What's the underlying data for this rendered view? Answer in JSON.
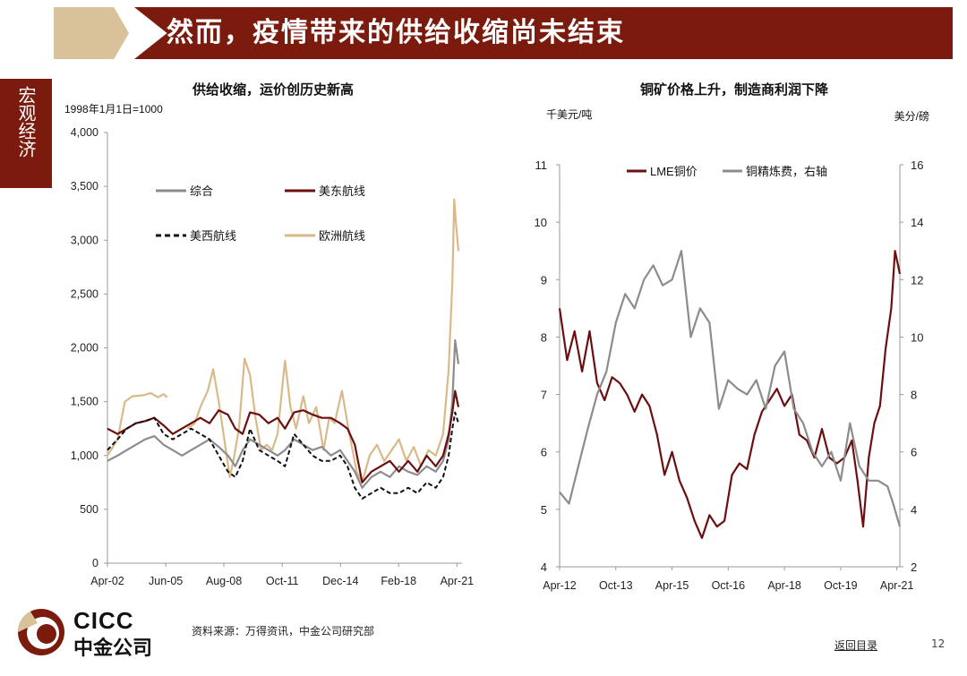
{
  "header": {
    "title": "然而，疫情带来的供给收缩尚未结束"
  },
  "side_tab": {
    "label": "宏观经济"
  },
  "footer": {
    "source": "资料来源：万得资讯，中金公司研究部",
    "back_link": "返回目录",
    "page_number": "12",
    "logo_en": "CICC",
    "logo_cn": "中金公司"
  },
  "colors": {
    "brand": "#7a1b0e",
    "tan": "#d9c29a",
    "gray": "#8c8c8c",
    "black": "#111111",
    "dark_red": "#6b0f10"
  },
  "chart_data": [
    {
      "type": "line",
      "title": "供给收缩，运价创历史新高",
      "subtitle": "1998年1月1日=1000",
      "ylim": [
        0,
        4000
      ],
      "yticks": [
        0,
        500,
        1000,
        1500,
        2000,
        2500,
        3000,
        3500,
        4000
      ],
      "ytick_labels": [
        "0",
        "500",
        "1,000",
        "1,500",
        "2,000",
        "2,500",
        "3,000",
        "3,500",
        "4,000"
      ],
      "xlim": [
        2002.25,
        2021.33
      ],
      "xticks": [
        2002.25,
        2005.42,
        2008.58,
        2011.75,
        2014.92,
        2018.08,
        2021.25
      ],
      "xtick_labels": [
        "Apr-02",
        "Jun-05",
        "Aug-08",
        "Oct-11",
        "Dec-14",
        "Feb-18",
        "Apr-21"
      ],
      "legend": [
        {
          "name": "综合",
          "color": "#8c8c8c",
          "dash": "solid"
        },
        {
          "name": "美东航线",
          "color": "#6b0f10",
          "dash": "solid"
        },
        {
          "name": "美西航线",
          "color": "#111111",
          "dash": "dashed"
        },
        {
          "name": "欧洲航线",
          "color": "#d9b98a",
          "dash": "solid"
        }
      ],
      "series": [
        {
          "name": "欧洲航线",
          "color": "#d9b98a",
          "width": 2.2,
          "dash": "solid",
          "x": [
            2002.25,
            2002.8,
            2003.2,
            2003.6,
            2004.2,
            2004.6,
            2005.0,
            2005.3,
            2005.5
          ],
          "y": [
            1000,
            1150,
            1500,
            1550,
            1560,
            1580,
            1540,
            1570,
            1540
          ]
        },
        {
          "name": "欧洲航线",
          "color": "#d9b98a",
          "width": 2.2,
          "dash": "solid",
          "x": [
            2006.6,
            2007.0,
            2007.3,
            2007.7,
            2008.0,
            2008.3,
            2008.6,
            2008.9,
            2009.1,
            2009.4,
            2009.7,
            2010.0,
            2010.3,
            2010.6,
            2010.9,
            2011.2,
            2011.5,
            2011.9,
            2012.2,
            2012.5,
            2012.9,
            2013.2,
            2013.6,
            2014.0,
            2014.3,
            2014.6,
            2015.0,
            2015.4,
            2015.8,
            2016.1,
            2016.5,
            2016.9,
            2017.3,
            2017.7,
            2018.1,
            2018.5,
            2018.9,
            2019.3,
            2019.7,
            2020.1,
            2020.5,
            2020.8,
            2021.0,
            2021.1,
            2021.2,
            2021.33
          ],
          "y": [
            1250,
            1300,
            1450,
            1600,
            1800,
            1500,
            1150,
            800,
            950,
            1250,
            1900,
            1750,
            1350,
            1050,
            1100,
            1050,
            1200,
            1880,
            1450,
            1250,
            1550,
            1300,
            1450,
            1050,
            1350,
            1300,
            1600,
            1200,
            850,
            750,
            1000,
            1100,
            950,
            1050,
            1150,
            950,
            1080,
            900,
            1050,
            1000,
            1200,
            1800,
            2600,
            3380,
            3150,
            2900
          ]
        },
        {
          "name": "综合",
          "color": "#8c8c8c",
          "width": 2.2,
          "dash": "solid",
          "x": [
            2002.25,
            2002.8,
            2003.3,
            2003.8,
            2004.3,
            2004.8,
            2005.3,
            2005.8,
            2006.3,
            2006.8,
            2007.3,
            2007.8,
            2008.3,
            2008.8,
            2009.2,
            2009.6,
            2010.0,
            2010.5,
            2011.0,
            2011.5,
            2011.9,
            2012.4,
            2012.9,
            2013.4,
            2013.9,
            2014.4,
            2014.9,
            2015.3,
            2015.7,
            2016.1,
            2016.6,
            2017.1,
            2017.6,
            2018.1,
            2018.6,
            2019.1,
            2019.6,
            2020.1,
            2020.5,
            2020.8,
            2021.0,
            2021.15,
            2021.33
          ],
          "y": [
            950,
            1000,
            1050,
            1100,
            1150,
            1180,
            1100,
            1050,
            1000,
            1050,
            1100,
            1150,
            1080,
            1000,
            900,
            1050,
            1150,
            1100,
            1050,
            1000,
            1050,
            1150,
            1100,
            1050,
            1080,
            1000,
            1050,
            950,
            850,
            700,
            800,
            850,
            800,
            900,
            850,
            820,
            900,
            850,
            950,
            1150,
            1500,
            2070,
            1850
          ]
        },
        {
          "name": "美东航线",
          "color": "#6b0f10",
          "width": 2.2,
          "dash": "solid",
          "x": [
            2002.25,
            2002.8,
            2003.3,
            2003.8,
            2004.3,
            2004.8,
            2005.3,
            2005.8,
            2006.3,
            2006.8,
            2007.3,
            2007.8,
            2008.3,
            2008.8,
            2009.2,
            2009.6,
            2010.0,
            2010.5,
            2011.0,
            2011.5,
            2011.9,
            2012.4,
            2012.9,
            2013.4,
            2013.9,
            2014.4,
            2014.9,
            2015.3,
            2015.7,
            2016.1,
            2016.6,
            2017.1,
            2017.6,
            2018.1,
            2018.6,
            2019.1,
            2019.6,
            2020.1,
            2020.5,
            2020.8,
            2021.0,
            2021.15,
            2021.33
          ],
          "y": [
            1250,
            1200,
            1250,
            1300,
            1320,
            1350,
            1280,
            1200,
            1250,
            1300,
            1350,
            1300,
            1420,
            1380,
            1250,
            1200,
            1400,
            1380,
            1300,
            1350,
            1250,
            1400,
            1420,
            1380,
            1350,
            1350,
            1300,
            1250,
            1100,
            750,
            850,
            900,
            950,
            850,
            950,
            850,
            1000,
            900,
            1000,
            1200,
            1400,
            1600,
            1450
          ]
        },
        {
          "name": "美西航线",
          "color": "#111111",
          "width": 2.0,
          "dash": "dashed",
          "x": [
            2002.25,
            2002.8,
            2003.3,
            2003.8,
            2004.3,
            2004.8,
            2005.3,
            2005.8,
            2006.3,
            2006.8,
            2007.3,
            2007.8,
            2008.3,
            2008.8,
            2009.2,
            2009.6,
            2010.0,
            2010.5,
            2011.0,
            2011.5,
            2011.9,
            2012.4,
            2012.9,
            2013.4,
            2013.9,
            2014.4,
            2014.9,
            2015.3,
            2015.7,
            2016.1,
            2016.6,
            2017.1,
            2017.6,
            2018.1,
            2018.6,
            2019.1,
            2019.6,
            2020.1,
            2020.5,
            2020.8,
            2021.0,
            2021.15,
            2021.33
          ],
          "y": [
            1050,
            1150,
            1250,
            1300,
            1320,
            1350,
            1200,
            1150,
            1200,
            1250,
            1200,
            1150,
            1000,
            850,
            800,
            950,
            1250,
            1050,
            1000,
            950,
            900,
            1200,
            1100,
            1000,
            950,
            950,
            1000,
            900,
            700,
            600,
            650,
            700,
            650,
            650,
            700,
            650,
            750,
            700,
            800,
            1000,
            1250,
            1400,
            1300
          ]
        }
      ]
    },
    {
      "type": "line",
      "title": "铜矿价格上升，制造商利润下降",
      "ylabel": "千美元/吨",
      "ylabel_right": "美分/磅",
      "ylim": [
        4,
        11
      ],
      "yticks": [
        4,
        5,
        6,
        7,
        8,
        9,
        10,
        11
      ],
      "ylim_right": [
        2,
        16
      ],
      "yticks_right": [
        2,
        4,
        6,
        8,
        10,
        12,
        14,
        16
      ],
      "xlim": [
        2012.25,
        2021.33
      ],
      "xticks": [
        2012.25,
        2013.75,
        2015.25,
        2016.75,
        2018.25,
        2019.75,
        2021.25
      ],
      "xtick_labels": [
        "Apr-12",
        "Oct-13",
        "Apr-15",
        "Oct-16",
        "Apr-18",
        "Oct-19",
        "Apr-21"
      ],
      "legend": [
        {
          "name": "LME铜价",
          "color": "#6b0f10"
        },
        {
          "name": "铜精炼费，右轴",
          "color": "#8c8c8c"
        }
      ],
      "series": [
        {
          "name": "LME铜价",
          "axis": "left",
          "color": "#6b0f10",
          "width": 2.2,
          "x": [
            2012.25,
            2012.45,
            2012.65,
            2012.85,
            2013.05,
            2013.25,
            2013.45,
            2013.65,
            2013.85,
            2014.05,
            2014.25,
            2014.45,
            2014.65,
            2014.85,
            2015.05,
            2015.25,
            2015.45,
            2015.65,
            2015.85,
            2016.05,
            2016.25,
            2016.45,
            2016.65,
            2016.85,
            2017.05,
            2017.25,
            2017.45,
            2017.65,
            2017.85,
            2018.05,
            2018.25,
            2018.45,
            2018.65,
            2018.85,
            2019.05,
            2019.25,
            2019.45,
            2019.65,
            2019.85,
            2020.05,
            2020.2,
            2020.35,
            2020.5,
            2020.65,
            2020.8,
            2020.95,
            2021.1,
            2021.2,
            2021.33
          ],
          "y": [
            8.5,
            7.6,
            8.1,
            7.4,
            8.1,
            7.2,
            6.9,
            7.3,
            7.2,
            7.0,
            6.7,
            7.0,
            6.8,
            6.3,
            5.6,
            6.0,
            5.5,
            5.2,
            4.8,
            4.5,
            4.9,
            4.7,
            4.8,
            5.6,
            5.8,
            5.7,
            6.3,
            6.7,
            6.9,
            7.1,
            6.8,
            7.0,
            6.3,
            6.2,
            5.9,
            6.4,
            5.9,
            5.8,
            5.9,
            6.2,
            5.5,
            4.7,
            5.9,
            6.5,
            6.8,
            7.8,
            8.5,
            9.5,
            9.1
          ]
        },
        {
          "name": "铜精炼费，右轴",
          "axis": "right",
          "color": "#8c8c8c",
          "width": 2.2,
          "x": [
            2012.25,
            2012.5,
            2012.75,
            2013.0,
            2013.25,
            2013.5,
            2013.75,
            2014.0,
            2014.25,
            2014.5,
            2014.75,
            2015.0,
            2015.25,
            2015.5,
            2015.75,
            2016.0,
            2016.25,
            2016.5,
            2016.75,
            2017.0,
            2017.25,
            2017.5,
            2017.75,
            2018.0,
            2018.25,
            2018.5,
            2018.75,
            2019.0,
            2019.25,
            2019.5,
            2019.75,
            2020.0,
            2020.25,
            2020.5,
            2020.75,
            2021.0,
            2021.15,
            2021.33
          ],
          "y": [
            4.6,
            4.2,
            5.5,
            6.8,
            8.0,
            8.8,
            10.5,
            11.5,
            11.0,
            12.0,
            12.5,
            11.8,
            12.0,
            13.0,
            10.0,
            11.0,
            10.5,
            7.5,
            8.5,
            8.2,
            8.0,
            8.5,
            7.5,
            9.0,
            9.5,
            7.5,
            7.0,
            6.0,
            5.5,
            6.0,
            5.0,
            7.0,
            5.5,
            5.0,
            5.0,
            4.8,
            4.2,
            3.4
          ]
        }
      ]
    }
  ]
}
